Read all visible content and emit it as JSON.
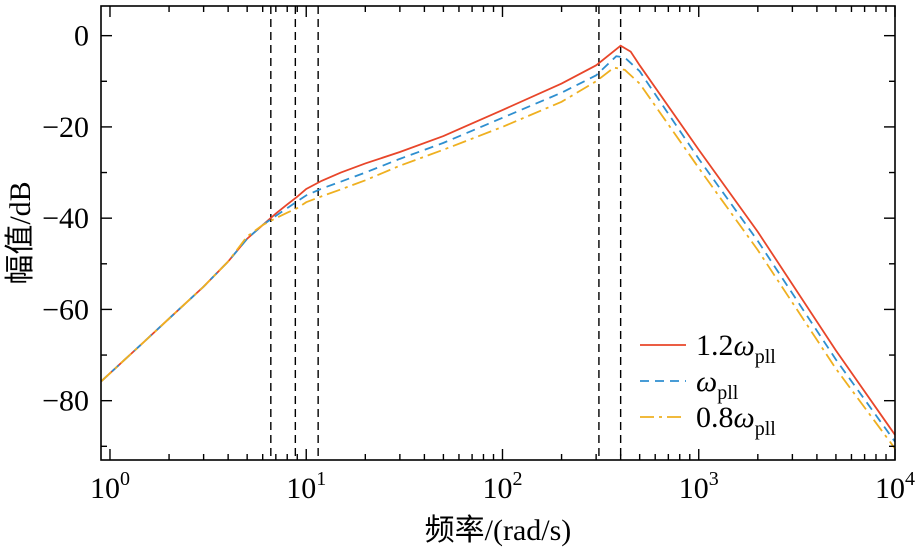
{
  "chart_data": {
    "type": "line",
    "xscale": "log",
    "xlim": [
      0.9,
      10000
    ],
    "ylim": [
      -93,
      6.5
    ],
    "xlabel": "频率/(rad/s)",
    "ylabel": "幅值/dB",
    "x_ticks": [
      {
        "value": 1,
        "base": "10",
        "exp": "0"
      },
      {
        "value": 10,
        "base": "10",
        "exp": "1"
      },
      {
        "value": 100,
        "base": "10",
        "exp": "2"
      },
      {
        "value": 1000,
        "base": "10",
        "exp": "3"
      },
      {
        "value": 10000,
        "base": "10",
        "exp": "4"
      }
    ],
    "y_ticks": [
      {
        "value": 0,
        "label": "0"
      },
      {
        "value": -20,
        "label": "−20"
      },
      {
        "value": -40,
        "label": "−40"
      },
      {
        "value": -60,
        "label": "−60"
      },
      {
        "value": -80,
        "label": "−80"
      }
    ],
    "vlines": [
      6.6,
      8.8,
      11.5,
      310,
      400
    ],
    "legend": {
      "position": "bottom-right"
    },
    "series": [
      {
        "name": "1.2ω_pll",
        "label_main": "1.2ω",
        "label_sub": "pll",
        "color": "#e8462a",
        "dash": "",
        "points": [
          [
            0.9,
            -75.8
          ],
          [
            1.5,
            -67
          ],
          [
            2,
            -62
          ],
          [
            3,
            -55
          ],
          [
            4,
            -49.5
          ],
          [
            5,
            -44.5
          ],
          [
            6,
            -41.5
          ],
          [
            7,
            -39
          ],
          [
            8,
            -37
          ],
          [
            9,
            -35.3
          ],
          [
            10,
            -33.6
          ],
          [
            12,
            -31.8
          ],
          [
            15,
            -30
          ],
          [
            20,
            -28
          ],
          [
            30,
            -25.5
          ],
          [
            50,
            -22
          ],
          [
            100,
            -16.3
          ],
          [
            200,
            -10.5
          ],
          [
            300,
            -6.5
          ],
          [
            400,
            -2.2
          ],
          [
            450,
            -3.5
          ],
          [
            500,
            -6.5
          ],
          [
            1000,
            -25
          ],
          [
            2000,
            -43
          ],
          [
            5000,
            -69
          ],
          [
            10000,
            -87.5
          ]
        ]
      },
      {
        "name": "ω_pll",
        "label_main": "ω",
        "label_sub": "pll",
        "color": "#2e8fd0",
        "dash": "9,6",
        "points": [
          [
            0.9,
            -75.8
          ],
          [
            1.5,
            -67
          ],
          [
            2,
            -62
          ],
          [
            3,
            -55
          ],
          [
            4,
            -49.5
          ],
          [
            5,
            -44.5
          ],
          [
            6,
            -41.5
          ],
          [
            7,
            -39.5
          ],
          [
            8,
            -37.8
          ],
          [
            9,
            -36.3
          ],
          [
            10,
            -35
          ],
          [
            12,
            -33.5
          ],
          [
            15,
            -32
          ],
          [
            20,
            -30
          ],
          [
            30,
            -27
          ],
          [
            50,
            -23.5
          ],
          [
            100,
            -18
          ],
          [
            200,
            -12.5
          ],
          [
            300,
            -8.7
          ],
          [
            380,
            -4.5
          ],
          [
            420,
            -4.8
          ],
          [
            500,
            -7.8
          ],
          [
            1000,
            -27
          ],
          [
            2000,
            -45
          ],
          [
            5000,
            -71
          ],
          [
            10000,
            -89
          ]
        ]
      },
      {
        "name": "0.8ω_pll",
        "label_main": "0.8ω",
        "label_sub": "pll",
        "color": "#efb020",
        "dash": "14,5,3,5",
        "points": [
          [
            0.9,
            -75.8
          ],
          [
            1.5,
            -67
          ],
          [
            2,
            -62
          ],
          [
            3,
            -55
          ],
          [
            4,
            -49.5
          ],
          [
            5,
            -44
          ],
          [
            6,
            -41.5
          ],
          [
            7,
            -40
          ],
          [
            8,
            -38.8
          ],
          [
            9,
            -37.8
          ],
          [
            10,
            -36.5
          ],
          [
            12,
            -35.2
          ],
          [
            15,
            -33.7
          ],
          [
            20,
            -31.7
          ],
          [
            30,
            -28.5
          ],
          [
            50,
            -25
          ],
          [
            100,
            -20
          ],
          [
            200,
            -14.5
          ],
          [
            300,
            -10
          ],
          [
            370,
            -7
          ],
          [
            420,
            -7.5
          ],
          [
            500,
            -10.5
          ],
          [
            1000,
            -29
          ],
          [
            2000,
            -47
          ],
          [
            5000,
            -73
          ],
          [
            10000,
            -90.5
          ]
        ]
      }
    ]
  }
}
